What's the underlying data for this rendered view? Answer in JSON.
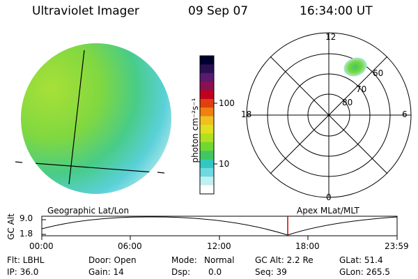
{
  "header": {
    "title": "Ultraviolet Imager",
    "date": "09 Sep 07",
    "time": "16:34:00 UT"
  },
  "colorbar": {
    "label": "photon cm⁻²s⁻¹",
    "ticks": [
      "100",
      "10"
    ],
    "colors": [
      "#000030",
      "#2a1050",
      "#5a1a70",
      "#8a1050",
      "#c00020",
      "#e04010",
      "#f08010",
      "#f0c020",
      "#e0e020",
      "#b0e020",
      "#70d830",
      "#40c860",
      "#30c8c0",
      "#70d8e0",
      "#c0f0f0",
      "#ffffff"
    ]
  },
  "polar": {
    "mlt_labels": [
      "12",
      "18",
      "6",
      "0"
    ],
    "lat_labels": [
      "60",
      "70",
      "80"
    ]
  },
  "timeline": {
    "ylabel": "GC Alt",
    "yticks": [
      "9.0",
      "1.8"
    ],
    "left_label": "Geographic Lat/Lon",
    "right_label": "Apex MLat/MLT",
    "xticks": [
      "00:00",
      "06:00",
      "12:00",
      "18:00",
      "23:59"
    ]
  },
  "info": {
    "flt": "Flt: LBHL",
    "ip": "IP: 36.0",
    "door": "Door: Open",
    "gain": "Gain: 14",
    "mode_label": "Mode:",
    "mode_value": "Normal",
    "dsp_label": "Dsp:",
    "dsp_value": "0.0",
    "gcalt": "GC Alt: 2.2 Re",
    "seq": "Seq: 39",
    "glat": "GLat: 51.4",
    "glon": "GLon: 265.5"
  }
}
